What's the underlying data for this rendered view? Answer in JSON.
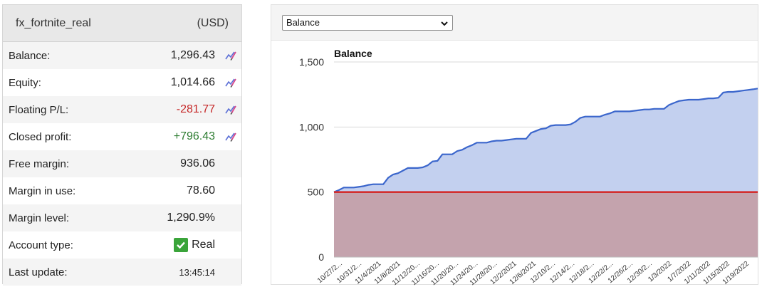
{
  "account": {
    "name": "fx_fortnite_real",
    "currency": "(USD)",
    "rows": [
      {
        "label": "Balance:",
        "value": "1,296.43",
        "edit": true,
        "tone": ""
      },
      {
        "label": "Equity:",
        "value": "1,014.66",
        "edit": true,
        "tone": ""
      },
      {
        "label": "Floating P/L:",
        "value": "-281.77",
        "edit": true,
        "tone": "neg"
      },
      {
        "label": "Closed profit:",
        "value": "+796.43",
        "edit": true,
        "tone": "pos"
      },
      {
        "label": "Free margin:",
        "value": "936.06",
        "edit": false,
        "tone": ""
      },
      {
        "label": "Margin in use:",
        "value": "78.60",
        "edit": false,
        "tone": ""
      },
      {
        "label": "Margin level:",
        "value": "1,290.9%",
        "edit": false,
        "tone": ""
      }
    ],
    "account_type_label": "Account type:",
    "account_type_value": "Real",
    "last_update_label": "Last update:",
    "last_update_value": "13:45:14"
  },
  "chart_controls": {
    "selected_series": "Balance",
    "icon": "chevron-down-icon"
  },
  "colors": {
    "balance_line": "#3b66cc",
    "balance_fill": "#c3d0ef",
    "deposit_line": "#d32f2f",
    "deposit_fill": "#c4a3ad",
    "negative": "#c62828",
    "positive": "#2e7d32",
    "check": "#3aa43a"
  },
  "chart_data": {
    "type": "area",
    "title": "Balance",
    "xlabel": "",
    "ylabel": "",
    "ylim": [
      0,
      1500
    ],
    "yticks": [
      0,
      500,
      1000,
      1500
    ],
    "ytick_labels": [
      "0",
      "500",
      "1,000",
      "1,500"
    ],
    "grid": true,
    "xtick_labels": [
      "10/27/2...",
      "10/31/2...",
      "11/4/2021",
      "11/8/2021",
      "11/12/20...",
      "11/16/20...",
      "11/20/20...",
      "11/24/20...",
      "11/28/20...",
      "12/2/2021",
      "12/6/2021",
      "12/10/2...",
      "12/14/2...",
      "12/18/2...",
      "12/22/2...",
      "12/26/2...",
      "12/30/2...",
      "1/3/2022",
      "1/7/2022",
      "1/11/2022",
      "1/15/2022",
      "1/19/2022"
    ],
    "series": [
      {
        "values": [
          500,
          515,
          535,
          535,
          535,
          540,
          545,
          555,
          560,
          560,
          560,
          610,
          635,
          645,
          665,
          685,
          685,
          685,
          690,
          705,
          735,
          740,
          790,
          790,
          790,
          815,
          825,
          845,
          860,
          880,
          880,
          880,
          890,
          895,
          895,
          900,
          905,
          910,
          910,
          910,
          955,
          970,
          985,
          990,
          1010,
          1015,
          1015,
          1015,
          1020,
          1040,
          1070,
          1080,
          1080,
          1080,
          1080,
          1095,
          1105,
          1120,
          1120,
          1120,
          1120,
          1125,
          1130,
          1135,
          1135,
          1140,
          1140,
          1140,
          1170,
          1185,
          1200,
          1205,
          1210,
          1210,
          1210,
          1215,
          1220,
          1220,
          1225,
          1265,
          1270,
          1270,
          1275,
          1280,
          1285,
          1290,
          1296
        ]
      },
      {
        "values": [
          500,
          500
        ]
      }
    ]
  }
}
